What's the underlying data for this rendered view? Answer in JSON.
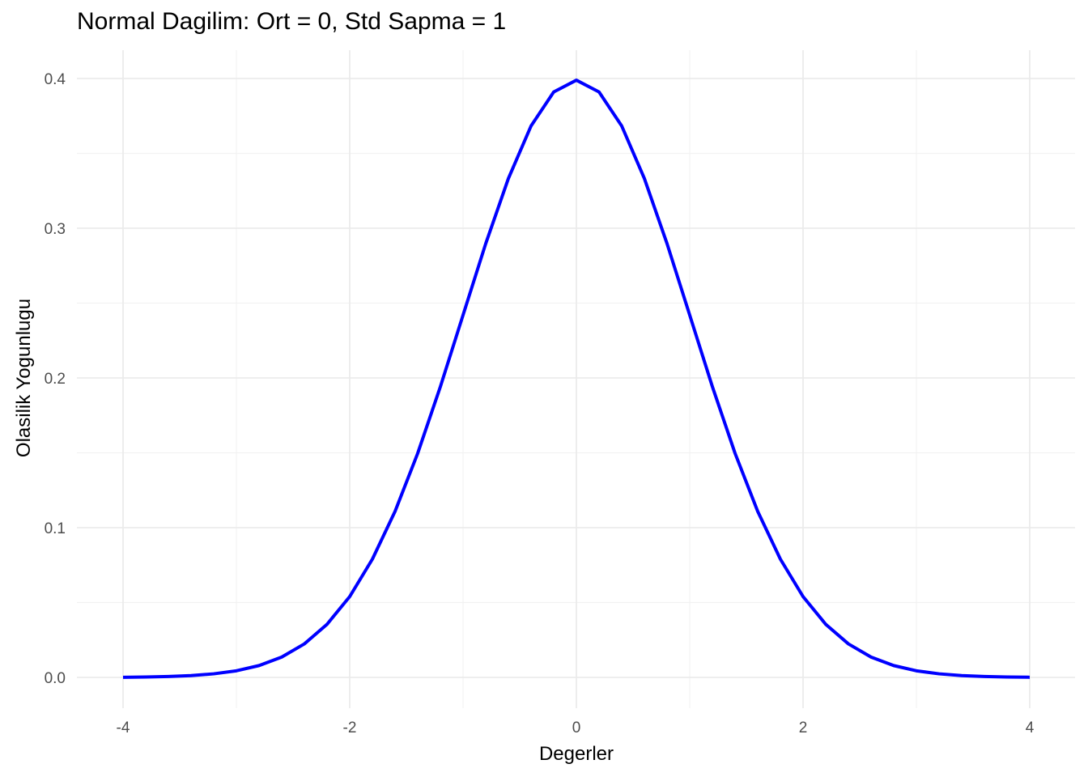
{
  "chart_data": {
    "type": "line",
    "title": "Normal Dagilim: Ort = 0, Std Sapma = 1",
    "xlabel": "Degerler",
    "ylabel": "Olasilik Yogunlugu",
    "xlim": [
      -4,
      4
    ],
    "ylim": [
      0,
      0.4
    ],
    "x_ticks": [
      -4,
      -2,
      0,
      2,
      4
    ],
    "x_tick_labels": [
      "-4",
      "-2",
      "0",
      "2",
      "4"
    ],
    "y_ticks": [
      0.0,
      0.1,
      0.2,
      0.3,
      0.4
    ],
    "y_tick_labels": [
      "0.0",
      "0.1",
      "0.2",
      "0.3",
      "0.4"
    ],
    "grid": true,
    "theme": "minimal",
    "series": [
      {
        "color": "#0000ff",
        "x": [
          -4.0,
          -3.8,
          -3.6,
          -3.4,
          -3.2,
          -3.0,
          -2.8,
          -2.6,
          -2.4,
          -2.2,
          -2.0,
          -1.8,
          -1.6,
          -1.4,
          -1.2,
          -1.0,
          -0.8,
          -0.6,
          -0.4,
          -0.2,
          0.0,
          0.2,
          0.4,
          0.6,
          0.8,
          1.0,
          1.2,
          1.4,
          1.6,
          1.8,
          2.0,
          2.2,
          2.4,
          2.6,
          2.8,
          3.0,
          3.2,
          3.4,
          3.6,
          3.8,
          4.0
        ],
        "y": [
          0.0001,
          0.0003,
          0.0006,
          0.0012,
          0.0024,
          0.0044,
          0.0079,
          0.0136,
          0.0224,
          0.0355,
          0.054,
          0.079,
          0.1109,
          0.1497,
          0.1942,
          0.242,
          0.2897,
          0.3332,
          0.3683,
          0.391,
          0.3989,
          0.391,
          0.3683,
          0.3332,
          0.2897,
          0.242,
          0.1942,
          0.1497,
          0.1109,
          0.079,
          0.054,
          0.0355,
          0.0224,
          0.0136,
          0.0079,
          0.0044,
          0.0024,
          0.0012,
          0.0006,
          0.0003,
          0.0001
        ]
      }
    ]
  }
}
